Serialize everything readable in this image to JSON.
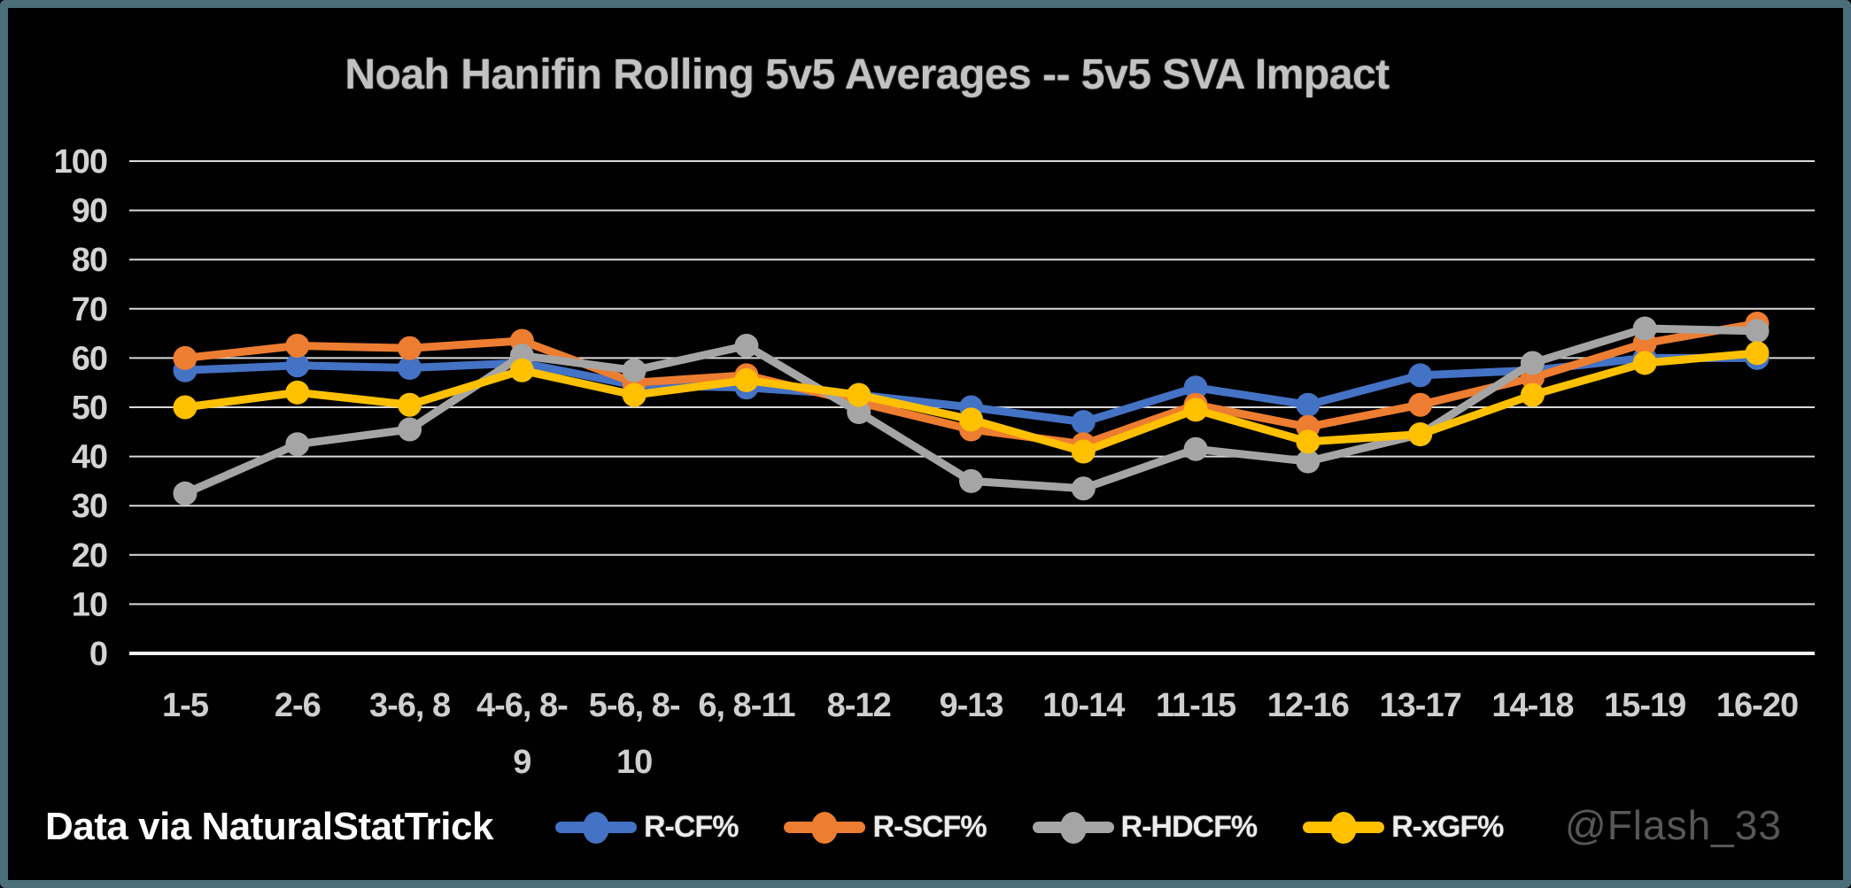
{
  "window": {
    "background_color": "#010101",
    "border_color": "#4b6e7a"
  },
  "title": "Noah Hanifin Rolling 5v5 Averages -- 5v5 SVA Impact",
  "footer": {
    "source_note": "Data via NaturalStatTrick",
    "watermark": "@Flash_33"
  },
  "chart_data": {
    "type": "line",
    "title": "Noah Hanifin Rolling 5v5 Averages -- 5v5 SVA Impact",
    "categories": [
      "1-5",
      "2-6",
      "3-6, 8",
      "4-6, 8-9",
      "5-6, 8-10",
      "6, 8-11",
      "8-12",
      "9-13",
      "10-14",
      "11-15",
      "12-16",
      "13-17",
      "14-18",
      "15-19",
      "16-20"
    ],
    "category_label_lines": [
      [
        "1-5"
      ],
      [
        "2-6"
      ],
      [
        "3-6, 8"
      ],
      [
        "4-6, 8-",
        "9"
      ],
      [
        "5-6, 8-",
        "10"
      ],
      [
        "6, 8-11"
      ],
      [
        "8-12"
      ],
      [
        "9-13"
      ],
      [
        "10-14"
      ],
      [
        "11-15"
      ],
      [
        "12-16"
      ],
      [
        "13-17"
      ],
      [
        "14-18"
      ],
      [
        "15-19"
      ],
      [
        "16-20"
      ]
    ],
    "series": [
      {
        "name": "R-CF%",
        "color": "#4472C4",
        "values": [
          57.5,
          58.5,
          58,
          59,
          54.5,
          54,
          52.5,
          50,
          47,
          54,
          50.5,
          56.5,
          57.5,
          60,
          60
        ]
      },
      {
        "name": "R-SCF%",
        "color": "#ED7D31",
        "values": [
          60,
          62.5,
          62,
          63.5,
          55,
          56.5,
          51,
          45.5,
          42.5,
          50.5,
          46,
          50.5,
          56,
          63,
          67
        ]
      },
      {
        "name": "R-HDCF%",
        "color": "#A5A5A5",
        "values": [
          32.5,
          42.5,
          45.5,
          60.5,
          57.5,
          62.5,
          49,
          35,
          33.5,
          41.5,
          39,
          44.5,
          59,
          66,
          65.5
        ]
      },
      {
        "name": "R-xGF%",
        "color": "#FFC000",
        "values": [
          50,
          53,
          50.5,
          57.5,
          52.5,
          55.5,
          52.5,
          47.5,
          41,
          49.5,
          43,
          44.5,
          52.5,
          59,
          61
        ]
      }
    ],
    "y_axis": {
      "min": 0,
      "max": 100,
      "step": 10,
      "tick_labels": [
        "0",
        "10",
        "20",
        "30",
        "40",
        "50",
        "60",
        "70",
        "80",
        "90",
        "100"
      ]
    },
    "x_axis_label": "",
    "y_axis_label": "",
    "grid": true,
    "legend_position": "bottom",
    "styles": {
      "gridline_color": "#d9d9d9",
      "axis_line_color": "#f2f2f2",
      "tick_label_color": "#d4d4d4",
      "line_width": 9,
      "marker_radius": 13.5
    }
  }
}
